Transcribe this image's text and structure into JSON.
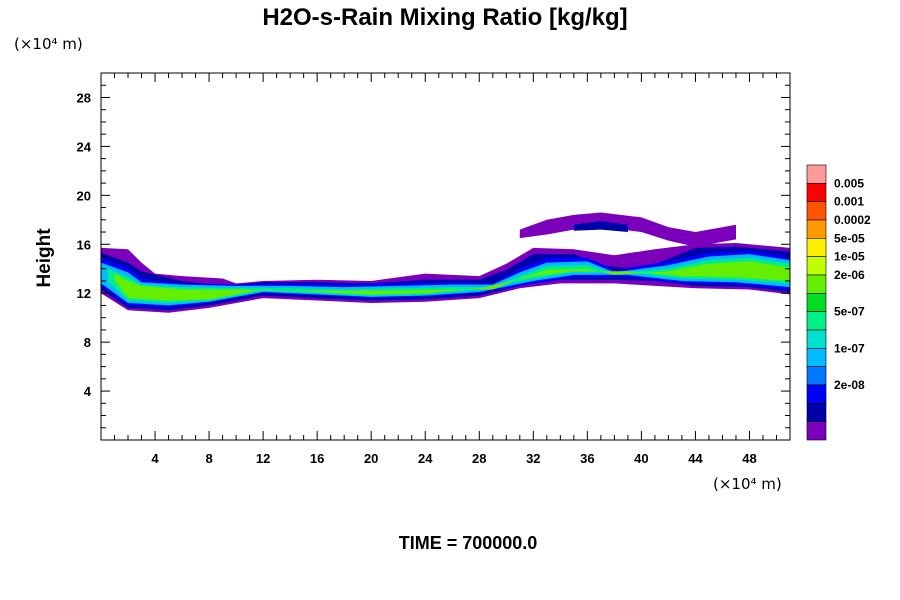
{
  "chart_data": {
    "type": "heatmap",
    "title": "H2O-s-Rain Mixing Ratio [kg/kg]",
    "ylabel": "Height",
    "x_unit_label": "(×10⁴ m)",
    "y_unit_label": "(×10⁴ m)",
    "footer": "TIME = 700000.0",
    "xlim": [
      0,
      51
    ],
    "ylim": [
      0,
      30
    ],
    "x_ticks": [
      4,
      8,
      12,
      16,
      20,
      24,
      28,
      32,
      36,
      40,
      44,
      48
    ],
    "y_ticks": [
      4,
      8,
      12,
      16,
      20,
      24,
      28
    ],
    "colorbar": {
      "labels": [
        "0.005",
        "0.001",
        "0.0002",
        "5e-05",
        "1e-05",
        "2e-06",
        "5e-07",
        "1e-07",
        "2e-08"
      ],
      "colors": [
        "#ff9a9a",
        "#ff0000",
        "#ff5500",
        "#ff9900",
        "#ffee00",
        "#c0ff00",
        "#66ee00",
        "#00dd22",
        "#00ee88",
        "#00e0cc",
        "#00bbff",
        "#0077ff",
        "#0000ff",
        "#0000aa",
        "#7a00bb"
      ]
    },
    "bands": [
      {
        "level": 0,
        "points": [
          [
            0,
            15.7
          ],
          [
            2,
            15.6
          ],
          [
            3,
            14.5
          ],
          [
            4,
            13.6
          ],
          [
            6,
            13.4
          ],
          [
            9,
            13.2
          ],
          [
            10,
            12.8
          ],
          [
            12,
            13.0
          ],
          [
            16,
            13.1
          ],
          [
            20,
            13.0
          ],
          [
            24,
            13.6
          ],
          [
            28,
            13.4
          ],
          [
            30,
            14.4
          ],
          [
            32,
            15.7
          ],
          [
            35,
            15.6
          ],
          [
            38,
            15.1
          ],
          [
            41,
            15.6
          ],
          [
            44,
            16.0
          ],
          [
            47,
            16.1
          ],
          [
            51,
            15.7
          ],
          [
            51,
            11.9
          ],
          [
            48,
            12.3
          ],
          [
            44,
            12.4
          ],
          [
            41,
            12.6
          ],
          [
            38,
            12.8
          ],
          [
            34,
            12.8
          ],
          [
            31,
            12.4
          ],
          [
            28,
            11.6
          ],
          [
            24,
            11.3
          ],
          [
            20,
            11.2
          ],
          [
            16,
            11.4
          ],
          [
            12,
            11.6
          ],
          [
            8,
            10.8
          ],
          [
            5,
            10.4
          ],
          [
            2,
            10.6
          ],
          [
            0,
            12.0
          ]
        ]
      },
      {
        "level": 1,
        "points": [
          [
            0,
            15.3
          ],
          [
            2,
            14.5
          ],
          [
            3,
            13.8
          ],
          [
            6,
            13.0
          ],
          [
            9,
            12.6
          ],
          [
            12,
            12.9
          ],
          [
            16,
            12.9
          ],
          [
            20,
            12.8
          ],
          [
            24,
            13.1
          ],
          [
            28,
            13.1
          ],
          [
            30,
            13.9
          ],
          [
            32,
            15.2
          ],
          [
            35,
            15.2
          ],
          [
            37,
            14.3
          ],
          [
            40,
            13.9
          ],
          [
            44,
            15.7
          ],
          [
            47,
            15.8
          ],
          [
            51,
            15.4
          ],
          [
            51,
            12.1
          ],
          [
            48,
            12.5
          ],
          [
            44,
            12.6
          ],
          [
            41,
            13.0
          ],
          [
            38,
            13.1
          ],
          [
            34,
            13.1
          ],
          [
            31,
            12.6
          ],
          [
            28,
            11.8
          ],
          [
            24,
            11.5
          ],
          [
            20,
            11.4
          ],
          [
            16,
            11.6
          ],
          [
            12,
            11.8
          ],
          [
            8,
            11.0
          ],
          [
            5,
            10.6
          ],
          [
            2,
            10.8
          ],
          [
            0,
            12.3
          ]
        ]
      },
      {
        "level": 2,
        "points": [
          [
            0,
            14.9
          ],
          [
            2,
            14.1
          ],
          [
            3,
            13.2
          ],
          [
            6,
            12.8
          ],
          [
            10,
            12.7
          ],
          [
            14,
            12.8
          ],
          [
            18,
            12.7
          ],
          [
            22,
            12.8
          ],
          [
            26,
            12.9
          ],
          [
            29,
            12.8
          ],
          [
            31,
            14.0
          ],
          [
            33,
            14.9
          ],
          [
            36,
            14.9
          ],
          [
            38,
            13.9
          ],
          [
            42,
            14.6
          ],
          [
            45,
            15.3
          ],
          [
            48,
            15.5
          ],
          [
            51,
            15.0
          ],
          [
            51,
            12.3
          ],
          [
            47,
            12.7
          ],
          [
            43,
            12.8
          ],
          [
            39,
            13.3
          ],
          [
            35,
            13.3
          ],
          [
            32,
            12.8
          ],
          [
            28,
            12.0
          ],
          [
            24,
            11.7
          ],
          [
            20,
            11.6
          ],
          [
            16,
            11.8
          ],
          [
            12,
            12.0
          ],
          [
            8,
            11.2
          ],
          [
            5,
            10.8
          ],
          [
            2,
            11.0
          ],
          [
            0,
            12.6
          ]
        ]
      },
      {
        "level": 3,
        "points": [
          [
            0,
            14.5
          ],
          [
            2,
            13.7
          ],
          [
            3,
            12.9
          ],
          [
            6,
            12.7
          ],
          [
            10,
            12.6
          ],
          [
            14,
            12.6
          ],
          [
            18,
            12.5
          ],
          [
            22,
            12.6
          ],
          [
            26,
            12.7
          ],
          [
            29,
            12.7
          ],
          [
            31,
            13.7
          ],
          [
            33,
            14.5
          ],
          [
            36,
            14.6
          ],
          [
            38,
            13.7
          ],
          [
            42,
            14.3
          ],
          [
            45,
            15.0
          ],
          [
            48,
            15.2
          ],
          [
            51,
            14.7
          ],
          [
            51,
            12.5
          ],
          [
            47,
            12.9
          ],
          [
            43,
            13.0
          ],
          [
            39,
            13.5
          ],
          [
            35,
            13.5
          ],
          [
            32,
            13.0
          ],
          [
            28,
            12.1
          ],
          [
            24,
            11.8
          ],
          [
            20,
            11.7
          ],
          [
            16,
            11.9
          ],
          [
            12,
            12.1
          ],
          [
            8,
            11.3
          ],
          [
            5,
            11.0
          ],
          [
            2,
            11.2
          ],
          [
            0,
            12.8
          ]
        ]
      },
      {
        "level": 4,
        "points": [
          [
            0.5,
            14.0
          ],
          [
            2,
            13.3
          ],
          [
            3,
            12.7
          ],
          [
            6,
            12.5
          ],
          [
            10,
            12.4
          ],
          [
            14,
            12.4
          ],
          [
            18,
            12.3
          ],
          [
            22,
            12.4
          ],
          [
            26,
            12.5
          ],
          [
            29,
            12.5
          ],
          [
            31,
            13.4
          ],
          [
            33,
            14.2
          ],
          [
            36,
            14.3
          ],
          [
            38,
            13.6
          ],
          [
            42,
            14.0
          ],
          [
            45,
            14.7
          ],
          [
            48,
            14.9
          ],
          [
            51,
            14.4
          ],
          [
            51,
            12.8
          ],
          [
            47,
            13.1
          ],
          [
            43,
            13.2
          ],
          [
            39,
            13.7
          ],
          [
            35,
            13.7
          ],
          [
            32,
            13.2
          ],
          [
            28,
            12.3
          ],
          [
            24,
            11.9
          ],
          [
            20,
            11.8
          ],
          [
            16,
            12.0
          ],
          [
            12,
            12.2
          ],
          [
            8,
            11.4
          ],
          [
            5,
            11.2
          ],
          [
            2,
            11.4
          ],
          [
            0.5,
            13.0
          ]
        ]
      },
      {
        "level": 5,
        "points": [
          [
            1,
            13.6
          ],
          [
            2,
            13.0
          ],
          [
            3,
            12.6
          ],
          [
            6,
            12.3
          ],
          [
            10,
            12.3
          ],
          [
            14,
            12.2
          ],
          [
            18,
            12.2
          ],
          [
            22,
            12.2
          ],
          [
            26,
            12.3
          ],
          [
            29,
            12.3
          ],
          [
            31,
            13.2
          ],
          [
            33,
            13.9
          ],
          [
            36,
            14.0
          ],
          [
            38,
            13.5
          ],
          [
            42,
            13.8
          ],
          [
            45,
            14.4
          ],
          [
            48,
            14.6
          ],
          [
            51,
            14.1
          ],
          [
            51,
            13.0
          ],
          [
            47,
            13.3
          ],
          [
            43,
            13.4
          ],
          [
            39,
            13.8
          ],
          [
            35,
            13.8
          ],
          [
            32,
            13.4
          ],
          [
            28,
            12.4
          ],
          [
            24,
            12.0
          ],
          [
            20,
            11.9
          ],
          [
            16,
            12.1
          ],
          [
            12,
            12.3
          ],
          [
            8,
            11.5
          ],
          [
            5,
            11.4
          ],
          [
            2,
            11.6
          ],
          [
            1,
            13.1
          ]
        ]
      }
    ],
    "upper_wisps": [
      {
        "level": 0,
        "points": [
          [
            31,
            17.2
          ],
          [
            33,
            18.0
          ],
          [
            35,
            18.4
          ],
          [
            37,
            18.6
          ],
          [
            40,
            18.2
          ],
          [
            42,
            17.4
          ],
          [
            44,
            17.0
          ],
          [
            47,
            17.6
          ],
          [
            47,
            16.4
          ],
          [
            44,
            15.8
          ],
          [
            42,
            16.3
          ],
          [
            40,
            17.0
          ],
          [
            37,
            17.4
          ],
          [
            35,
            17.2
          ],
          [
            33,
            16.8
          ],
          [
            31,
            16.5
          ]
        ]
      },
      {
        "level": 1,
        "points": [
          [
            35,
            17.6
          ],
          [
            37,
            17.9
          ],
          [
            39,
            17.6
          ],
          [
            39,
            17.0
          ],
          [
            37,
            17.2
          ],
          [
            35,
            17.1
          ]
        ]
      }
    ]
  }
}
